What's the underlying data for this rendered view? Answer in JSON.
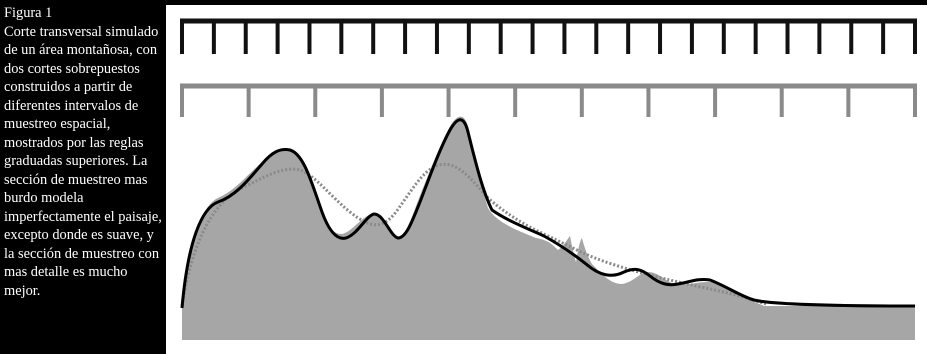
{
  "caption": {
    "title": "Figura 1",
    "body": "Corte transversal simulado de un área montañosa, con dos cortes sobrepuestos construidos a partir de diferentes intervalos de muestreo espacial, mostrados por las reglas graduadas superiores.  La sección de muestreo mas burdo modela imperfectamente el paisaje, excepto donde es suave, y la sección de muestreo con mas detalle es mucho mejor."
  },
  "colors": {
    "caption_background": "#000000",
    "caption_text": "#ffffff",
    "terrain_fill": "#a6a6a6",
    "terrain_fill_flat": "#8c8c8c",
    "fine_ruler": "#111111",
    "coarse_ruler": "#8a8a8a",
    "fine_profile": "#000000",
    "coarse_profile": "#8a8a8a"
  },
  "rulers": {
    "fine_intervals": 23,
    "coarse_intervals": 11
  }
}
